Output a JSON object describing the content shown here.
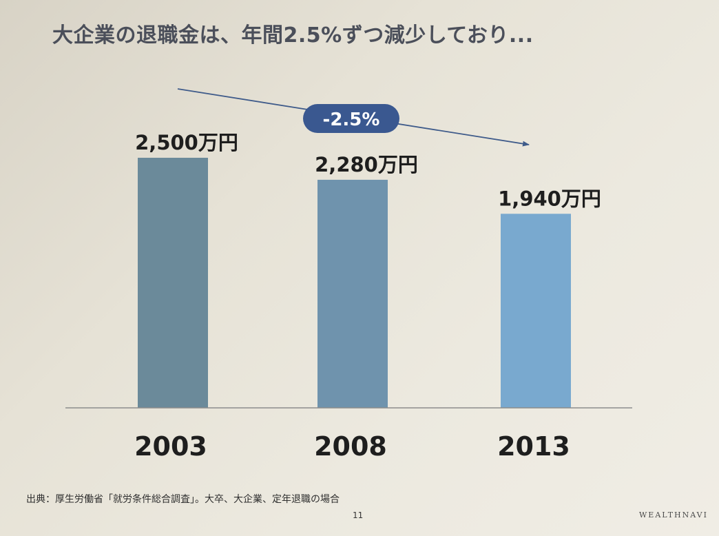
{
  "title": "大企業の退職金は、年間2.5%ずつ減少しており...",
  "footnote": "出典：厚生労働省「就労条件総合調査」。大卒、大企業、定年退職の場合",
  "page_number": "11",
  "brand": "WEALTHNAVI",
  "colors": {
    "bars": [
      "#6b8a9a",
      "#6f93ad",
      "#79a9cf"
    ],
    "trend_line": "#3f5b8a",
    "badge_fill": "#3a5890",
    "badge_text": "#ffffff",
    "axis": "#8c8c8c",
    "title": "#4b4f5a",
    "label": "#1e1e1e"
  },
  "chart_data": {
    "type": "bar",
    "categories": [
      "2003",
      "2008",
      "2013"
    ],
    "values": [
      2500,
      2280,
      1940
    ],
    "value_labels": [
      "2,500万円",
      "2,280万円",
      "1,940万円"
    ],
    "unit": "万円",
    "ylim": [
      0,
      2500
    ],
    "grid": false,
    "annotation": {
      "text": "-2.5%",
      "kind": "downward trend arrow"
    },
    "title": "大企業の退職金は、年間2.5%ずつ減少しており...",
    "xlabel": "",
    "ylabel": ""
  }
}
